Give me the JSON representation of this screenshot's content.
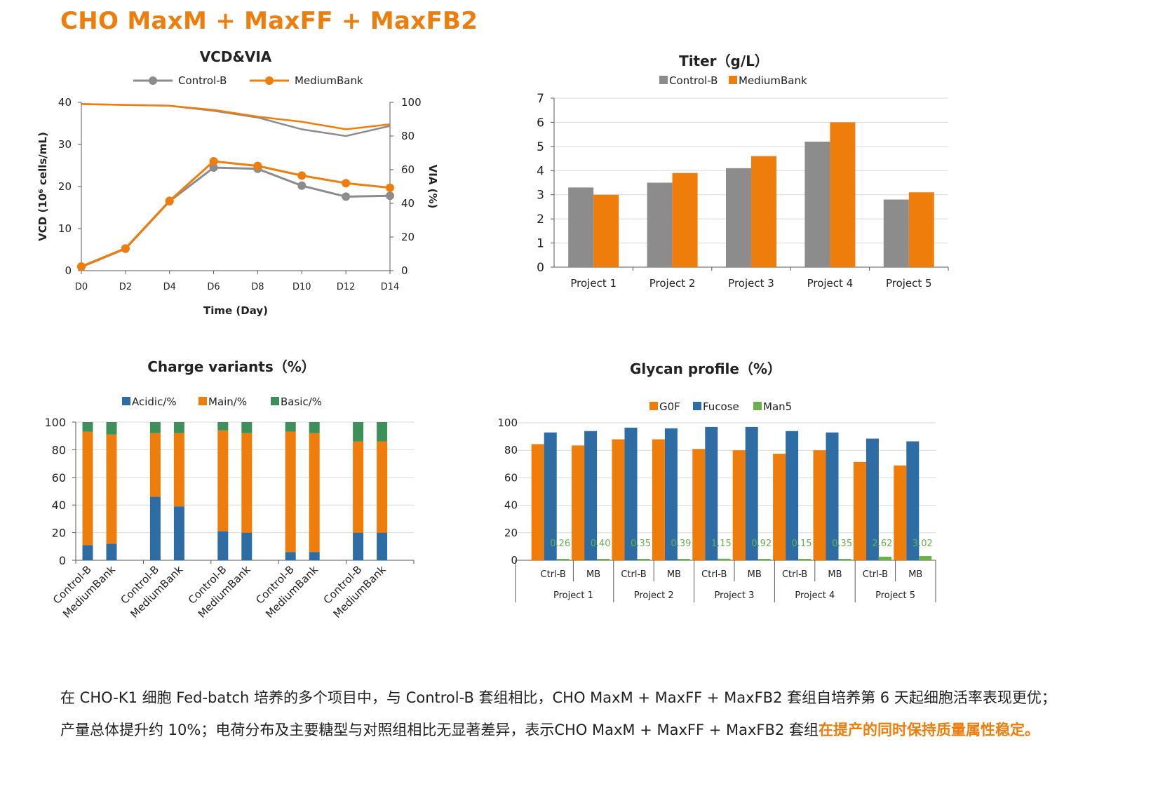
{
  "page_title": "CHO MaxM + MaxFF + MaxFB2",
  "summary": {
    "text": "在 CHO-K1 细胞 Fed-batch 培养的多个项目中，与 Control-B 套组相比，CHO MaxM + MaxFF + MaxFB2 套组自培养第 6 天起细胞活率表现更优；产量总体提升约 10%；电荷分布及主要糖型与对照组相比无显著差异，表示CHO MaxM + MaxFF + MaxFB2 套组",
    "highlight": "在提产的同时保持质量属性稳定。"
  },
  "colors": {
    "orange": "#ef7d0b",
    "gray": "#8c8c8c",
    "blue": "#2e6da4",
    "green": "#3f8f5a",
    "light_green": "#6ab04c",
    "grid": "#d9d9d9",
    "axis": "#595959"
  },
  "chart_data": [
    {
      "type": "line",
      "title": "VCD&VIA",
      "xlabel": "Time (Day)",
      "ylabel": "VCD (10⁶ cells/mL)",
      "y2label": "VIA (%)",
      "x": [
        "D0",
        "D2",
        "D4",
        "D6",
        "D8",
        "D10",
        "D12",
        "D14"
      ],
      "ylim": [
        0,
        40
      ],
      "yticks": [
        0,
        10,
        20,
        30,
        40
      ],
      "y2lim": [
        0,
        100
      ],
      "y2ticks": [
        0,
        20,
        40,
        60,
        80,
        100
      ],
      "legend_position": "top",
      "grid": false,
      "series": [
        {
          "name": "Control-B",
          "axis": "VCD",
          "markers": true,
          "values": [
            0.9,
            5.2,
            16.5,
            24.5,
            24.2,
            20.2,
            17.6,
            17.8
          ]
        },
        {
          "name": "MediumBank",
          "axis": "VCD",
          "markers": true,
          "values": [
            1.0,
            5.3,
            16.6,
            26.0,
            24.9,
            22.6,
            20.8,
            19.7
          ]
        },
        {
          "name": "Control-B",
          "axis": "VIA",
          "markers": false,
          "values": [
            99,
            98.5,
            98,
            95,
            91,
            84,
            80,
            86
          ]
        },
        {
          "name": "MediumBank",
          "axis": "VIA",
          "markers": false,
          "values": [
            99,
            98.5,
            98,
            95.5,
            91.5,
            88.5,
            84,
            87
          ]
        }
      ]
    },
    {
      "type": "bar",
      "title": "Titer（g/L）",
      "categories": [
        "Project 1",
        "Project 2",
        "Project 3",
        "Project 4",
        "Project 5"
      ],
      "ylim": [
        0,
        7
      ],
      "yticks": [
        0,
        1,
        2,
        3,
        4,
        5,
        6,
        7
      ],
      "grid": true,
      "legend_position": "top",
      "series": [
        {
          "name": "Control-B",
          "values": [
            3.3,
            3.5,
            4.1,
            5.2,
            2.8
          ]
        },
        {
          "name": "MediumBank",
          "values": [
            3.0,
            3.9,
            4.6,
            6.0,
            3.1
          ]
        }
      ]
    },
    {
      "type": "bar",
      "stacked": true,
      "title": "Charge variants（%）",
      "categories": [
        "Control-B",
        "MediumBank",
        "Control-B",
        "MediumBank",
        "Control-B",
        "MediumBank",
        "Control-B",
        "MediumBank",
        "Control-B",
        "MediumBank"
      ],
      "ylim": [
        0,
        100
      ],
      "yticks": [
        0,
        20,
        40,
        60,
        80,
        100
      ],
      "grid": true,
      "legend_position": "top",
      "series": [
        {
          "name": "Acidic/%",
          "values": [
            11,
            12,
            46,
            39,
            21,
            20,
            6,
            6,
            20,
            20
          ]
        },
        {
          "name": "Main/%",
          "values": [
            82,
            79,
            46,
            53,
            73,
            72,
            87,
            86,
            66,
            66
          ]
        },
        {
          "name": "Basic/%",
          "values": [
            7,
            9,
            8,
            8,
            6,
            8,
            7,
            8,
            14,
            14
          ]
        }
      ]
    },
    {
      "type": "bar",
      "title": "Glycan profile（%）",
      "categories": [
        "Ctrl-B",
        "MB",
        "Ctrl-B",
        "MB",
        "Ctrl-B",
        "MB",
        "Ctrl-B",
        "MB",
        "Ctrl-B",
        "MB"
      ],
      "groups": [
        "Project 1",
        "Project 2",
        "Project 3",
        "Project 4",
        "Project 5"
      ],
      "ylim": [
        0,
        100
      ],
      "yticks": [
        0,
        20,
        40,
        60,
        80,
        100
      ],
      "grid": true,
      "legend_position": "top",
      "series": [
        {
          "name": "G0F",
          "values": [
            84.5,
            83.5,
            88,
            88,
            81,
            80,
            77.5,
            80,
            71.5,
            69
          ]
        },
        {
          "name": "Fucose",
          "values": [
            93,
            94,
            96.5,
            96,
            97,
            97,
            94,
            93,
            88.5,
            86.5
          ]
        },
        {
          "name": "Man5",
          "values": [
            0.26,
            0.4,
            0.35,
            0.39,
            1.15,
            0.92,
            0.15,
            0.35,
            2.62,
            3.02
          ]
        }
      ],
      "data_labels": [
        "0.26",
        "0.40",
        "0.35",
        "0.39",
        "1.15",
        "0.92",
        "0.15",
        "0.35",
        "2.62",
        "3.02"
      ]
    }
  ]
}
